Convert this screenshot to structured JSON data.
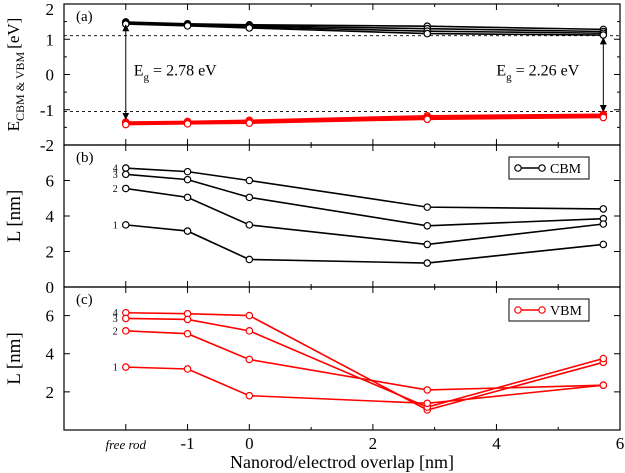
{
  "chart_data": [
    {
      "type": "line",
      "panel_label": "(a)",
      "ylabel_main": "E",
      "ylabel_sub": "CBM & VBM",
      "ylabel_unit": "[eV]",
      "ylim": [
        -2,
        2
      ],
      "yticks": [
        "-2",
        "-1",
        "0",
        "1",
        "2"
      ],
      "dashed_levels": [
        1.1,
        -1.05
      ],
      "series": [
        {
          "group": "CBM",
          "color": "#000000",
          "x": [
            -2,
            -1,
            0,
            2.88,
            5.73
          ],
          "y": [
            1.49,
            1.44,
            1.41,
            1.37,
            1.28
          ]
        },
        {
          "group": "CBM",
          "color": "#000000",
          "x": [
            -2,
            -1,
            0,
            2.88,
            5.73
          ],
          "y": [
            1.47,
            1.42,
            1.38,
            1.3,
            1.22
          ]
        },
        {
          "group": "CBM",
          "color": "#000000",
          "x": [
            -2,
            -1,
            0,
            2.88,
            5.73
          ],
          "y": [
            1.45,
            1.4,
            1.35,
            1.23,
            1.17
          ]
        },
        {
          "group": "CBM",
          "color": "#000000",
          "x": [
            -2,
            -1,
            0,
            2.88,
            5.73
          ],
          "y": [
            1.43,
            1.38,
            1.32,
            1.16,
            1.12
          ]
        },
        {
          "group": "VBM",
          "color": "#ff0000",
          "x": [
            -2,
            -1,
            0,
            2.88,
            5.73
          ],
          "y": [
            -1.35,
            -1.33,
            -1.3,
            -1.17,
            -1.13
          ]
        },
        {
          "group": "VBM",
          "color": "#ff0000",
          "x": [
            -2,
            -1,
            0,
            2.88,
            5.73
          ],
          "y": [
            -1.38,
            -1.36,
            -1.33,
            -1.21,
            -1.16
          ]
        },
        {
          "group": "VBM",
          "color": "#ff0000",
          "x": [
            -2,
            -1,
            0,
            2.88,
            5.73
          ],
          "y": [
            -1.4,
            -1.38,
            -1.36,
            -1.24,
            -1.19
          ]
        },
        {
          "group": "VBM",
          "color": "#ff0000",
          "x": [
            -2,
            -1,
            0,
            2.88,
            5.73
          ],
          "y": [
            -1.42,
            -1.4,
            -1.38,
            -1.27,
            -1.22
          ]
        }
      ],
      "annotations": [
        {
          "text_main": "E",
          "text_sub": "g",
          "text_rest": " = 2.78 eV",
          "x": -2,
          "y_from": 1.49,
          "y_to": -1.35
        },
        {
          "text_main": "E",
          "text_sub": "g",
          "text_rest": " = 2.26 eV",
          "x": 5.73,
          "y_from": 1.12,
          "y_to": -1.13
        }
      ]
    },
    {
      "type": "line",
      "panel_label": "(b)",
      "ylabel": "L [nm]",
      "ylim": [
        0,
        8
      ],
      "yticks": [
        "0",
        "2",
        "4",
        "6"
      ],
      "legend": {
        "name": "CBM",
        "color": "#000000"
      },
      "series": [
        {
          "level": "4",
          "color": "#000000",
          "x": [
            -2,
            -1,
            0,
            2.88,
            5.73
          ],
          "y": [
            6.7,
            6.5,
            6.0,
            4.5,
            4.4
          ]
        },
        {
          "level": "3",
          "color": "#000000",
          "x": [
            -2,
            -1,
            0,
            2.88,
            5.73
          ],
          "y": [
            6.35,
            6.05,
            5.05,
            3.45,
            3.85
          ]
        },
        {
          "level": "2",
          "color": "#000000",
          "x": [
            -2,
            -1,
            0,
            2.88,
            5.73
          ],
          "y": [
            5.55,
            5.05,
            3.5,
            2.4,
            3.55
          ]
        },
        {
          "level": "1",
          "color": "#000000",
          "x": [
            -2,
            -1,
            0,
            2.88,
            5.73
          ],
          "y": [
            3.5,
            3.15,
            1.55,
            1.35,
            2.4
          ]
        }
      ]
    },
    {
      "type": "line",
      "panel_label": "(c)",
      "ylabel": "L [nm]",
      "ylim": [
        0,
        7.5
      ],
      "yticks": [
        "2",
        "4",
        "6"
      ],
      "legend": {
        "name": "VBM",
        "color": "#ff0000"
      },
      "xlabel": "Nanorod/electrod overlap [nm]",
      "xlim": [
        -3,
        6
      ],
      "xticks": [
        {
          "value": -2,
          "label": "free rod",
          "italic": true
        },
        {
          "value": -1,
          "label": "-1"
        },
        {
          "value": 0,
          "label": "0"
        },
        {
          "value": 2,
          "label": "2"
        },
        {
          "value": 4,
          "label": "4"
        },
        {
          "value": 6,
          "label": "6"
        }
      ],
      "series": [
        {
          "level": "4",
          "color": "#ff0000",
          "x": [
            -2,
            -1,
            0,
            2.88,
            5.73
          ],
          "y": [
            6.15,
            6.1,
            6.0,
            1.05,
            3.55
          ]
        },
        {
          "level": "3",
          "color": "#ff0000",
          "x": [
            -2,
            -1,
            0,
            2.88,
            5.73
          ],
          "y": [
            5.85,
            5.8,
            5.2,
            1.2,
            3.75
          ]
        },
        {
          "level": "2",
          "color": "#ff0000",
          "x": [
            -2,
            -1,
            0,
            2.88,
            5.73
          ],
          "y": [
            5.2,
            5.05,
            3.7,
            2.1,
            2.35
          ]
        },
        {
          "level": "1",
          "color": "#ff0000",
          "x": [
            -2,
            -1,
            0,
            2.88,
            5.73
          ],
          "y": [
            3.3,
            3.2,
            1.8,
            1.4,
            2.35
          ]
        }
      ]
    }
  ]
}
